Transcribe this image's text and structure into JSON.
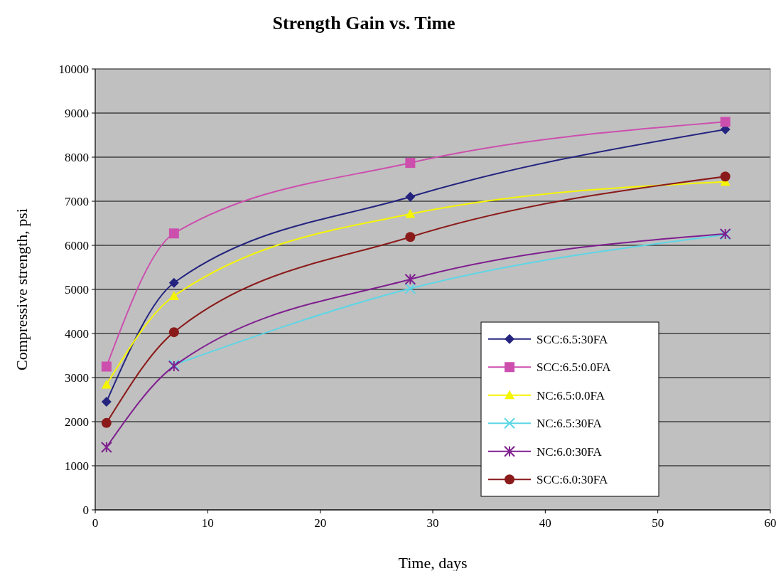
{
  "chart_data": {
    "type": "line",
    "title": "Strength Gain vs. Time",
    "xlabel": "Time, days",
    "ylabel": "Compressive strength, psi",
    "x": [
      1,
      7,
      28,
      56
    ],
    "series": [
      {
        "name": "SCC:6.5:30FA",
        "color": "#24247f",
        "marker": "diamond",
        "values": [
          2450,
          5150,
          7100,
          8630
        ]
      },
      {
        "name": "SCC:6.5:0.0FA",
        "color": "#cc4fae",
        "marker": "square",
        "values": [
          3250,
          6270,
          7870,
          8800
        ]
      },
      {
        "name": "NC:6.5:0.0FA",
        "color": "#f5f500",
        "marker": "triangle",
        "values": [
          2840,
          4850,
          6710,
          7440
        ]
      },
      {
        "name": "NC:6.5:30FA",
        "color": "#5cd6e6",
        "marker": "cross",
        "values": [
          null,
          3290,
          5020,
          6240
        ]
      },
      {
        "name": "NC:6.0:30FA",
        "color": "#7f1f8f",
        "marker": "cross",
        "values": [
          1420,
          3260,
          5230,
          6260
        ]
      },
      {
        "name": "SCC:6.0:30FA",
        "color": "#8b1a1a",
        "marker": "circle",
        "values": [
          1970,
          4030,
          6190,
          7560
        ]
      }
    ],
    "xlim": [
      0,
      60
    ],
    "xticks": [
      0,
      10,
      20,
      30,
      40,
      50,
      60
    ],
    "ylim": [
      0,
      10000
    ],
    "yticks": [
      0,
      1000,
      2000,
      3000,
      4000,
      5000,
      6000,
      7000,
      8000,
      9000,
      10000
    ],
    "grid": "y",
    "legend": "bottom right"
  }
}
